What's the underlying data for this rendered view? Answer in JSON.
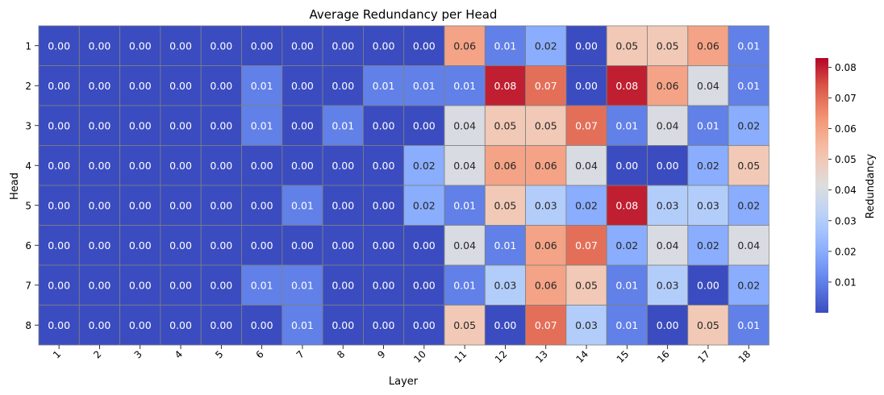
{
  "chart_data": {
    "type": "heatmap",
    "title": "Average Redundancy per Head",
    "xlabel": "Layer",
    "ylabel": "Head",
    "colorbar_label": "Redundancy",
    "colormap": "coolwarm",
    "x": [
      "1",
      "2",
      "3",
      "4",
      "5",
      "6",
      "7",
      "8",
      "9",
      "10",
      "11",
      "12",
      "13",
      "14",
      "15",
      "16",
      "17",
      "18"
    ],
    "y": [
      "1",
      "2",
      "3",
      "4",
      "5",
      "6",
      "7",
      "8"
    ],
    "values": [
      [
        0.0,
        0.0,
        0.0,
        0.0,
        0.0,
        0.0,
        0.0,
        0.0,
        0.0,
        0.0,
        0.06,
        0.01,
        0.02,
        0.0,
        0.05,
        0.05,
        0.06,
        0.01
      ],
      [
        0.0,
        0.0,
        0.0,
        0.0,
        0.0,
        0.01,
        0.0,
        0.0,
        0.01,
        0.01,
        0.01,
        0.08,
        0.07,
        0.0,
        0.08,
        0.06,
        0.04,
        0.01
      ],
      [
        0.0,
        0.0,
        0.0,
        0.0,
        0.0,
        0.01,
        0.0,
        0.01,
        0.0,
        0.0,
        0.04,
        0.05,
        0.05,
        0.07,
        0.01,
        0.04,
        0.01,
        0.02
      ],
      [
        0.0,
        0.0,
        0.0,
        0.0,
        0.0,
        0.0,
        0.0,
        0.0,
        0.0,
        0.02,
        0.04,
        0.06,
        0.06,
        0.04,
        0.0,
        0.0,
        0.02,
        0.05
      ],
      [
        0.0,
        0.0,
        0.0,
        0.0,
        0.0,
        0.0,
        0.01,
        0.0,
        0.0,
        0.02,
        0.01,
        0.05,
        0.03,
        0.02,
        0.08,
        0.03,
        0.03,
        0.02
      ],
      [
        0.0,
        0.0,
        0.0,
        0.0,
        0.0,
        0.0,
        0.0,
        0.0,
        0.0,
        0.0,
        0.04,
        0.01,
        0.06,
        0.07,
        0.02,
        0.04,
        0.02,
        0.04
      ],
      [
        0.0,
        0.0,
        0.0,
        0.0,
        0.0,
        0.01,
        0.01,
        0.0,
        0.0,
        0.0,
        0.01,
        0.03,
        0.06,
        0.05,
        0.01,
        0.03,
        0.0,
        0.02
      ],
      [
        0.0,
        0.0,
        0.0,
        0.0,
        0.0,
        0.0,
        0.01,
        0.0,
        0.0,
        0.0,
        0.05,
        0.0,
        0.07,
        0.03,
        0.01,
        0.0,
        0.05,
        0.01
      ]
    ],
    "vmin": 0.0,
    "vmax": 0.083,
    "colorbar_ticks": [
      "0.01",
      "0.02",
      "0.03",
      "0.04",
      "0.05",
      "0.06",
      "0.07",
      "0.08"
    ],
    "value_format": "0.00",
    "cell_border_color": "#808080",
    "grid": false,
    "legend_position": "right"
  }
}
